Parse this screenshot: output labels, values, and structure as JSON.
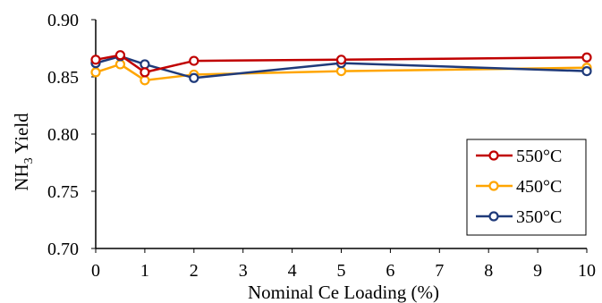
{
  "chart_data": {
    "type": "line",
    "title": "",
    "xlabel": "Nominal Ce Loading (%)",
    "ylabel": {
      "pre": "NH",
      "sub": "3",
      "post": " Yield"
    },
    "xlim": [
      0,
      10
    ],
    "ylim": [
      0.7,
      0.9
    ],
    "x_ticks": [
      "0",
      "1",
      "2",
      "3",
      "4",
      "5",
      "6",
      "7",
      "8",
      "9",
      "10"
    ],
    "y_ticks": [
      "0.70",
      "0.75",
      "0.80",
      "0.85",
      "0.90"
    ],
    "grid": false,
    "legend_position": "bottom-right",
    "series": [
      {
        "name": "550°C",
        "color": "#c00000",
        "x": [
          0,
          0.5,
          1,
          2,
          5,
          10
        ],
        "y": [
          0.865,
          0.869,
          0.854,
          0.864,
          0.865,
          0.867
        ]
      },
      {
        "name": "450°C",
        "color": "#ffa500",
        "x": [
          0,
          0.5,
          1,
          2,
          5,
          10
        ],
        "y": [
          0.854,
          0.861,
          0.847,
          0.852,
          0.855,
          0.858
        ]
      },
      {
        "name": "350°C",
        "color": "#1f3a7a",
        "x": [
          0,
          0.5,
          1,
          2,
          5,
          10
        ],
        "y": [
          0.862,
          0.868,
          0.861,
          0.849,
          0.862,
          0.855
        ]
      }
    ]
  }
}
